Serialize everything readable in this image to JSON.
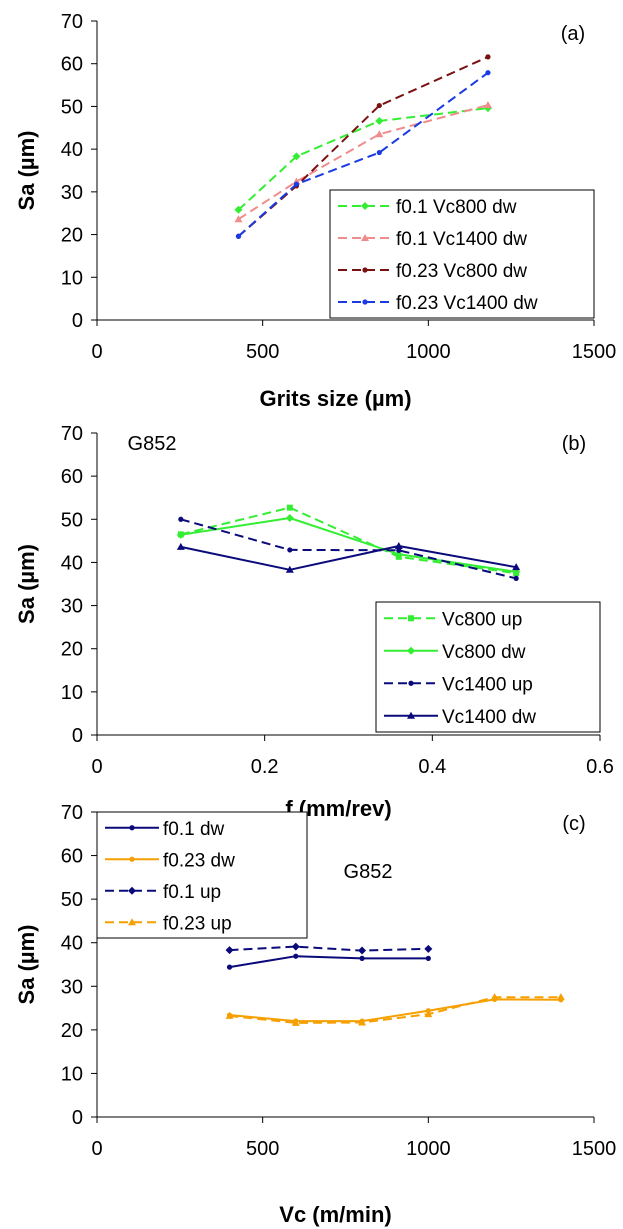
{
  "chart_data": [
    {
      "type": "line",
      "panel_label": "(a)",
      "annotation": "",
      "xlabel": "Grits size (µm)",
      "ylabel": "Sa (µm)",
      "xlim": [
        0,
        1500
      ],
      "ylim": [
        0,
        70
      ],
      "xticks": [
        "0",
        "500",
        "1000",
        "1500"
      ],
      "yticks": [
        "0",
        "10",
        "20",
        "30",
        "40",
        "50",
        "60",
        "70"
      ],
      "legend_position": "bottom-right",
      "series": [
        {
          "name": "f0.1 Vc800 dw",
          "color": "#33ee33",
          "dash": "dashed",
          "marker": "diamond",
          "x": [
            427,
            602,
            852,
            1180
          ],
          "y": [
            25.8,
            38.3,
            46.6,
            49.6
          ]
        },
        {
          "name": "f0.1 Vc1400 dw",
          "color": "#f08c8c",
          "dash": "dashed",
          "marker": "triangle",
          "x": [
            427,
            602,
            852,
            1180
          ],
          "y": [
            23.6,
            32.4,
            43.5,
            50.3
          ]
        },
        {
          "name": "f0.23 Vc800 dw",
          "color": "#7a1010",
          "dash": "dashed",
          "marker": "dot",
          "x": [
            427,
            602,
            852,
            1180
          ],
          "y": [
            19.6,
            31.4,
            50.2,
            61.6
          ]
        },
        {
          "name": "f0.23 Vc1400 dw",
          "color": "#1a3ae6",
          "dash": "dashed",
          "marker": "dot",
          "x": [
            427,
            602,
            852,
            1180
          ],
          "y": [
            19.6,
            31.8,
            39.2,
            57.9
          ]
        }
      ]
    },
    {
      "type": "line",
      "panel_label": "(b)",
      "annotation": "G852",
      "xlabel": "f (mm/rev)",
      "ylabel": "Sa (µm)",
      "xlim": [
        0,
        0.6
      ],
      "ylim": [
        0,
        70
      ],
      "xticks": [
        "0",
        "0.2",
        "0.4",
        "0.6"
      ],
      "yticks": [
        "0",
        "10",
        "20",
        "30",
        "40",
        "50",
        "60",
        "70"
      ],
      "legend_position": "bottom-right",
      "series": [
        {
          "name": "Vc800 up",
          "color": "#33ee33",
          "dash": "dashed",
          "marker": "square",
          "x": [
            0.1,
            0.23,
            0.36,
            0.5
          ],
          "y": [
            46.5,
            52.7,
            41.3,
            37.5
          ]
        },
        {
          "name": "Vc800 dw",
          "color": "#33ee33",
          "dash": "solid",
          "marker": "diamond",
          "x": [
            0.1,
            0.23,
            0.36,
            0.5
          ],
          "y": [
            46.4,
            50.3,
            41.9,
            37.8
          ]
        },
        {
          "name": "Vc1400 up",
          "color": "#0a0a7a",
          "dash": "dashed",
          "marker": "dot",
          "x": [
            0.1,
            0.23,
            0.36,
            0.5
          ],
          "y": [
            50.0,
            42.9,
            42.8,
            36.3
          ]
        },
        {
          "name": "Vc1400 dw",
          "color": "#0a0a7a",
          "dash": "solid",
          "marker": "triangle",
          "x": [
            0.1,
            0.23,
            0.36,
            0.5
          ],
          "y": [
            43.6,
            38.3,
            43.8,
            38.9
          ]
        }
      ]
    },
    {
      "type": "line",
      "panel_label": "(c)",
      "annotation": "G852",
      "xlabel": "Vc (m/min)",
      "ylabel": "Sa (µm)",
      "xlim": [
        0,
        1500
      ],
      "ylim": [
        0,
        70
      ],
      "xticks": [
        "0",
        "500",
        "1000",
        "1500"
      ],
      "yticks": [
        "0",
        "10",
        "20",
        "30",
        "40",
        "50",
        "60",
        "70"
      ],
      "legend_position": "top-left",
      "series": [
        {
          "name": "f0.1 dw",
          "color": "#0a0a7a",
          "dash": "solid",
          "marker": "dot",
          "x": [
            400,
            600,
            800,
            1000
          ],
          "y": [
            34.4,
            36.9,
            36.4,
            36.4
          ]
        },
        {
          "name": "f0.23 dw",
          "color": "#f5a000",
          "dash": "solid",
          "marker": "dot",
          "x": [
            400,
            600,
            800,
            1000,
            1200,
            1400
          ],
          "y": [
            23.4,
            22.0,
            22.0,
            24.4,
            27.0,
            26.9
          ]
        },
        {
          "name": "f0.1 up",
          "color": "#0a0a7a",
          "dash": "dashed",
          "marker": "diamond",
          "x": [
            400,
            600,
            800,
            1000
          ],
          "y": [
            38.3,
            39.1,
            38.2,
            38.6
          ]
        },
        {
          "name": "f0.23 up",
          "color": "#f5a000",
          "dash": "dashed",
          "marker": "triangle",
          "x": [
            400,
            600,
            800,
            1000,
            1200,
            1400
          ],
          "y": [
            23.2,
            21.6,
            21.7,
            23.6,
            27.5,
            27.5
          ]
        }
      ]
    }
  ]
}
